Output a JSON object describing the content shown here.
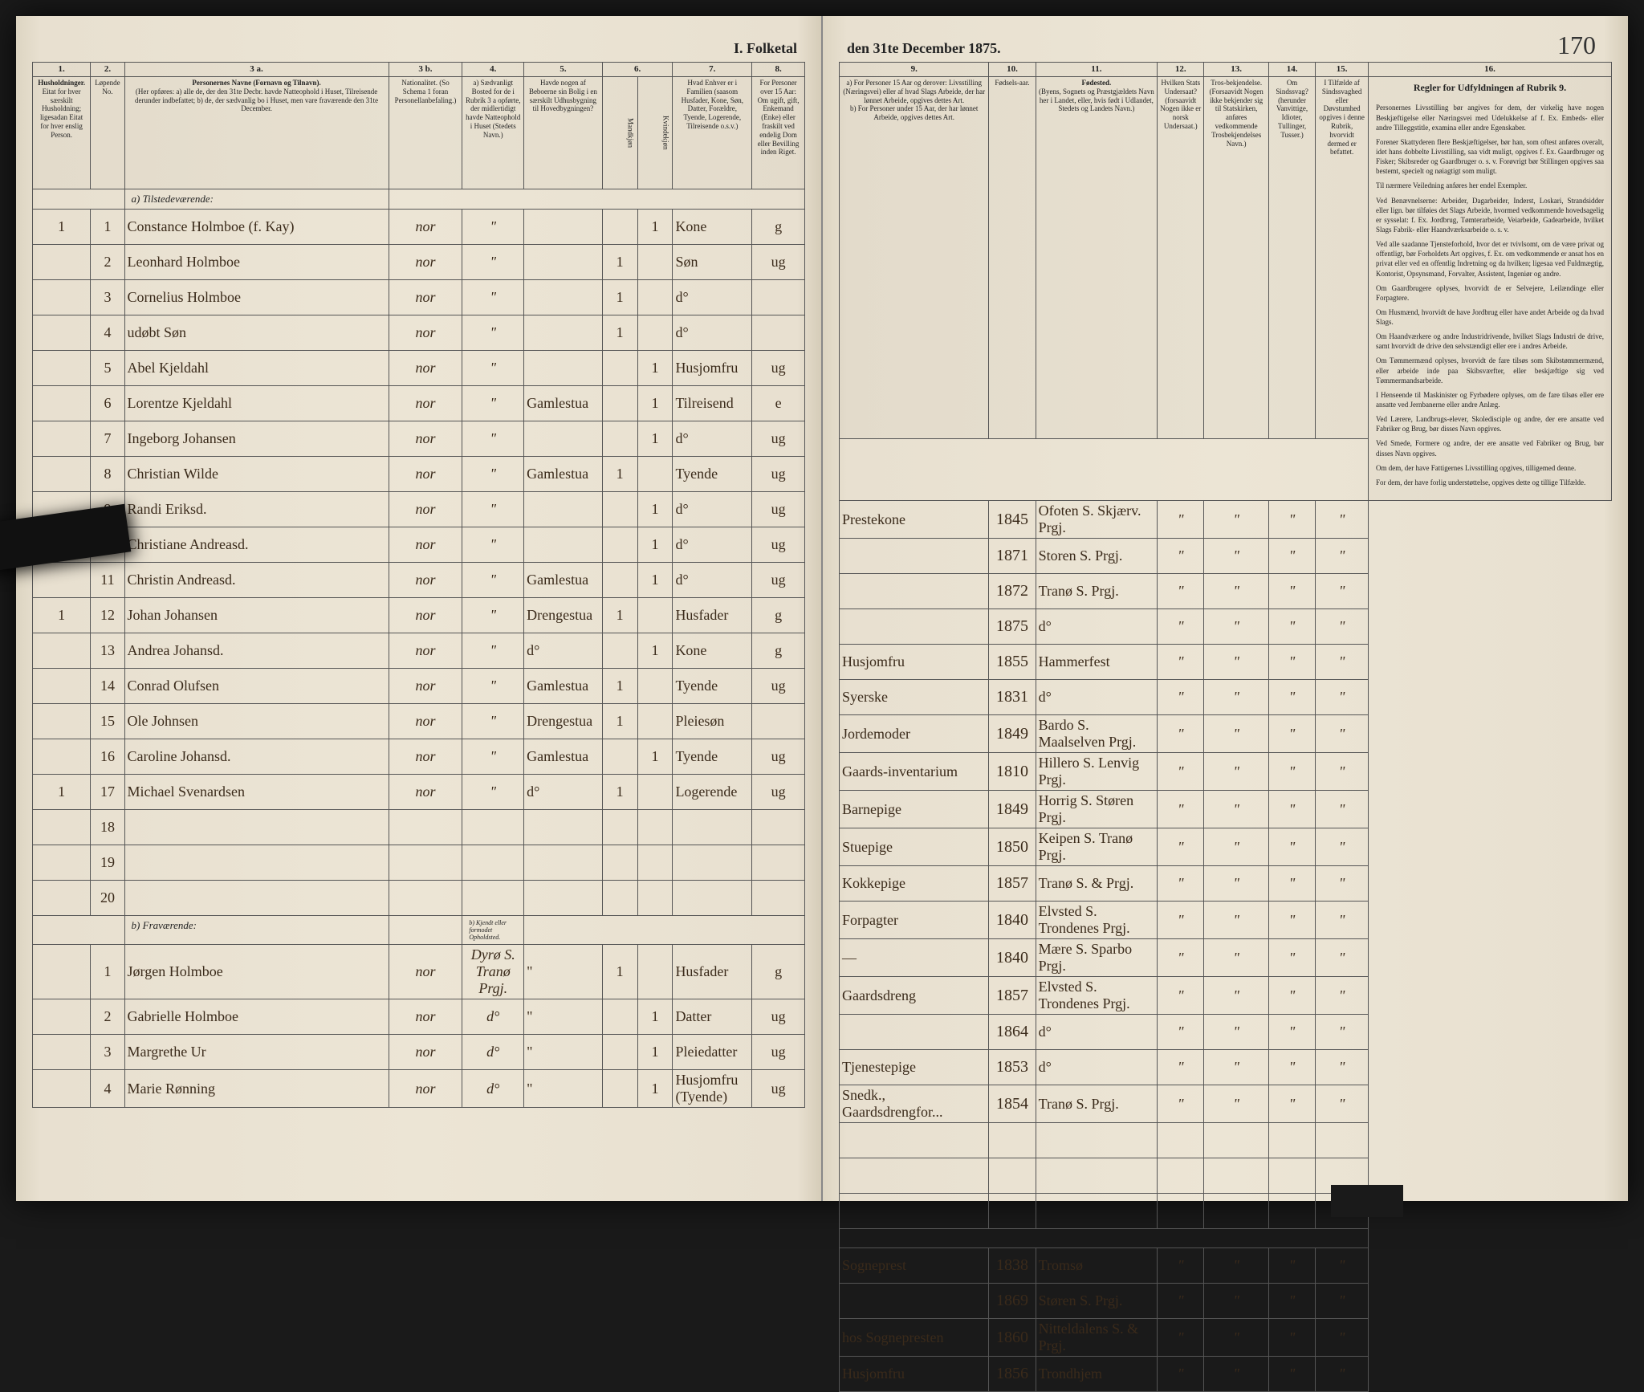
{
  "document": {
    "title_left": "I. Folketal",
    "title_right": "den 31te December 1875.",
    "page_number": "170"
  },
  "columns_left": {
    "c1": "1.",
    "c2": "2.",
    "c3a": "3 a.",
    "c3b": "3 b.",
    "c4": "4.",
    "c5": "5.",
    "c6": "6.",
    "c7": "7.",
    "c8": "8.",
    "h1": "Husholdninger.",
    "h1_sub": "Eitat for hver særskilt Husholdning; ligesadan Eitat for hver enslig Person.",
    "h2": "Løpende No.",
    "h3a_title": "Personernes Navne (Fornavn og Tilnavn).",
    "h3a_sub": "(Her opføres: a) alle de, der den 31te Decbr. havde Natteophold i Huset, Tilreisende derunder indbefattet; b) de, der sædvanlig bo i Huset, men vare fraværende den 31te December.",
    "h3b": "Nationalitet. (So Schema 1 foran Personellanbefaling.)",
    "h4": "a) Sædvanligt Bosted for de i Rubrik 3 a opførte, der midlertidigt havde Natteophold i Huset (Stedets Navn.)",
    "h5": "Havde nogen af Beboerne sin Bolig i en særskilt Udhusbygning til Hovedbygningen?",
    "h6": "Kjøn.",
    "h6m": "Mandkjøn",
    "h6k": "Kvindekjøn",
    "h7": "Hvad Enhver er i Familien (saasom Husfader, Kone, Søn, Datter, Forældre, Tyende, Logerende, Tilreisende o.s.v.)",
    "h8": "For Personer over 15 Aar: Om ugift, gift, Enkemand (Enke) eller fraskilt ved endelig Dom eller Bevilling inden Riget."
  },
  "columns_right": {
    "c9": "9.",
    "c10": "10.",
    "c11": "11.",
    "c12": "12.",
    "c13": "13.",
    "c14": "14.",
    "c15": "15.",
    "c16": "16.",
    "h9": "a) For Personer 15 Aar og derover: Livsstilling (Næringsvei) eller af hvad Slags Arbeide, der har lønnet Arbeide, opgives dettes Art.",
    "h9b": "b) For Personer under 15 Aar, der har lønnet Arbeide, opgives dettes Art.",
    "h10": "Fødsels-aar.",
    "h11_title": "Fødested.",
    "h11_sub": "(Byens, Sognets og Præstgjældets Navn her i Landet, eller, hvis født i Udlandet, Stedets og Landets Navn.)",
    "h12": "Hvilken Stats Undersaat? (forsaavidt Nogen ikke er norsk Undersaat.)",
    "h13": "Tros-bekjendelse. (Forsaavidt Nogen ikke bekjender sig til Statskirken, anføres vedkommende Trosbekjendelses Navn.)",
    "h14": "Om Sindssvag? (herunder Vanvittige, Idioter, Tullinger, Tusser.)",
    "h15": "I Tilfælde af Sindssvaghed eller Døvstumhed opgives i denne Rubrik, hvorvidt dermed er befattet.",
    "h16_title": "Regler for Udfyldningen af Rubrik 9."
  },
  "sections": {
    "a_label": "a) Tilstedeværende:",
    "b_label": "b) Fraværende:",
    "b_col_label": "b) Kjendt eller formodet Opholdsted."
  },
  "rows_a": [
    {
      "hh": "1",
      "n": "1",
      "name": "Constance Holmboe (f. Kay)",
      "nat": "nor",
      "res": "\"",
      "out": "",
      "m": "",
      "k": "1",
      "rel": "Kone",
      "civ": "g",
      "occ": "Prestekone",
      "year": "1845",
      "place": "Ofoten S. Skjærv. Prgj."
    },
    {
      "hh": "",
      "n": "2",
      "name": "Leonhard Holmboe",
      "nat": "nor",
      "res": "\"",
      "out": "",
      "m": "1",
      "k": "",
      "rel": "Søn",
      "civ": "ug",
      "occ": "",
      "year": "1871",
      "place": "Storen S. Prgj."
    },
    {
      "hh": "",
      "n": "3",
      "name": "Cornelius Holmboe",
      "nat": "nor",
      "res": "\"",
      "out": "",
      "m": "1",
      "k": "",
      "rel": "d°",
      "civ": "",
      "occ": "",
      "year": "1872",
      "place": "Tranø S. Prgj."
    },
    {
      "hh": "",
      "n": "4",
      "name": "udøbt Søn",
      "nat": "nor",
      "res": "\"",
      "out": "",
      "m": "1",
      "k": "",
      "rel": "d°",
      "civ": "",
      "occ": "",
      "year": "1875",
      "place": "d°"
    },
    {
      "hh": "",
      "n": "5",
      "name": "Abel Kjeldahl",
      "nat": "nor",
      "res": "\"",
      "out": "",
      "m": "",
      "k": "1",
      "rel": "Husjomfru",
      "civ": "ug",
      "occ": "Husjomfru",
      "year": "1855",
      "place": "Hammerfest"
    },
    {
      "hh": "",
      "n": "6",
      "name": "Lorentze Kjeldahl",
      "nat": "nor",
      "res": "\"",
      "out": "Gamlestua",
      "m": "",
      "k": "1",
      "rel": "Tilreisend",
      "civ": "e",
      "occ": "Syerske",
      "year": "1831",
      "place": "d°"
    },
    {
      "hh": "",
      "n": "7",
      "name": "Ingeborg Johansen",
      "nat": "nor",
      "res": "\"",
      "out": "",
      "m": "",
      "k": "1",
      "rel": "d°",
      "civ": "ug",
      "occ": "Jordemoder",
      "year": "1849",
      "place": "Bardo S. Maalselven Prgj."
    },
    {
      "hh": "",
      "n": "8",
      "name": "Christian Wilde",
      "nat": "nor",
      "res": "\"",
      "out": "Gamlestua",
      "m": "1",
      "k": "",
      "rel": "Tyende",
      "civ": "ug",
      "occ": "Gaards-inventarium",
      "year": "1810",
      "place": "Hillero S. Lenvig Prgj."
    },
    {
      "hh": "",
      "n": "9",
      "name": "Randi Eriksd.",
      "nat": "nor",
      "res": "\"",
      "out": "",
      "m": "",
      "k": "1",
      "rel": "d°",
      "civ": "ug",
      "occ": "Barnepige",
      "year": "1849",
      "place": "Horrig S. Støren Prgj."
    },
    {
      "hh": "",
      "n": "10",
      "name": "Christiane Andreasd.",
      "nat": "nor",
      "res": "\"",
      "out": "",
      "m": "",
      "k": "1",
      "rel": "d°",
      "civ": "ug",
      "occ": "Stuepige",
      "year": "1850",
      "place": "Keipen S. Tranø Prgj."
    },
    {
      "hh": "",
      "n": "11",
      "name": "Christin Andreasd.",
      "nat": "nor",
      "res": "\"",
      "out": "Gamlestua",
      "m": "",
      "k": "1",
      "rel": "d°",
      "civ": "ug",
      "occ": "Kokkepige",
      "year": "1857",
      "place": "Tranø S. & Prgj."
    },
    {
      "hh": "1",
      "n": "12",
      "name": "Johan Johansen",
      "nat": "nor",
      "res": "\"",
      "out": "Drengestua",
      "m": "1",
      "k": "",
      "rel": "Husfader",
      "civ": "g",
      "occ": "Forpagter",
      "year": "1840",
      "place": "Elvsted S. Trondenes Prgj."
    },
    {
      "hh": "",
      "n": "13",
      "name": "Andrea Johansd.",
      "nat": "nor",
      "res": "\"",
      "out": "d°",
      "m": "",
      "k": "1",
      "rel": "Kone",
      "civ": "g",
      "occ": "—",
      "year": "1840",
      "place": "Mære S. Sparbo Prgj."
    },
    {
      "hh": "",
      "n": "14",
      "name": "Conrad Olufsen",
      "nat": "nor",
      "res": "\"",
      "out": "Gamlestua",
      "m": "1",
      "k": "",
      "rel": "Tyende",
      "civ": "ug",
      "occ": "Gaardsdreng",
      "year": "1857",
      "place": "Elvsted S. Trondenes Prgj."
    },
    {
      "hh": "",
      "n": "15",
      "name": "Ole Johnsen",
      "nat": "nor",
      "res": "\"",
      "out": "Drengestua",
      "m": "1",
      "k": "",
      "rel": "Pleiesøn",
      "civ": "",
      "occ": "",
      "year": "1864",
      "place": "d°"
    },
    {
      "hh": "",
      "n": "16",
      "name": "Caroline Johansd.",
      "nat": "nor",
      "res": "\"",
      "out": "Gamlestua",
      "m": "",
      "k": "1",
      "rel": "Tyende",
      "civ": "ug",
      "occ": "Tjenestepige",
      "year": "1853",
      "place": "d°"
    },
    {
      "hh": "1",
      "n": "17",
      "name": "Michael Svenardsen",
      "nat": "nor",
      "res": "\"",
      "out": "d°",
      "m": "1",
      "k": "",
      "rel": "Logerende",
      "civ": "ug",
      "occ": "Snedk., Gaardsdrengfor...",
      "year": "1854",
      "place": "Tranø S. Prgj."
    }
  ],
  "rows_empty": [
    "18",
    "19",
    "20"
  ],
  "rows_b": [
    {
      "hh": "",
      "n": "1",
      "name": "Jørgen Holmboe",
      "nat": "nor",
      "res": "Dyrø S. Tranø Prgj.",
      "out": "\"",
      "m": "1",
      "k": "",
      "rel": "Husfader",
      "civ": "g",
      "occ": "Sogneprest",
      "year": "1838",
      "place": "Tromsø"
    },
    {
      "hh": "",
      "n": "2",
      "name": "Gabrielle Holmboe",
      "nat": "nor",
      "res": "d°",
      "out": "\"",
      "m": "",
      "k": "1",
      "rel": "Datter",
      "civ": "ug",
      "occ": "",
      "year": "1869",
      "place": "Støren S. Prgj."
    },
    {
      "hh": "",
      "n": "3",
      "name": "Margrethe Ur",
      "nat": "nor",
      "res": "d°",
      "out": "\"",
      "m": "",
      "k": "1",
      "rel": "Pleiedatter",
      "civ": "ug",
      "occ": "hos Sognepresten",
      "year": "1860",
      "place": "Nitteldalens S. & Prgj."
    },
    {
      "hh": "",
      "n": "4",
      "name": "Marie Rønning",
      "nat": "nor",
      "res": "d°",
      "out": "\"",
      "m": "",
      "k": "1",
      "rel": "Husjomfru (Tyende)",
      "civ": "ug",
      "occ": "Husjomfru",
      "year": "1856",
      "place": "Trondhjem"
    }
  ],
  "instructions": {
    "p1": "Personernes Livsstilling bør angives for dem, der virkelig have nogen Beskjæftigelse eller Næringsvei med Udelukkelse af f. Ex. Embeds- eller andre Tilleggstitle, examina eller andre Egenskaber.",
    "p2": "Forener Skattyderen flere Beskjæftigelser, bør han, som oftest anføres overalt, idet hans dobbelte Livsstilling, saa vidt muligt, opgives f. Ex. Gaardbruger og Fisker; Skibsreder og Gaardbruger o. s. v. Forøvrigt bør Stillingen opgives saa bestemt, specielt og nøiagtigt som muligt.",
    "p3": "Til nærmere Veiledning anføres her endel Exempler.",
    "p4": "Ved Benævnelserne: Arbeider, Dagarbeider, Inderst, Loskari, Strandsidder eller lign. bør tilføies det Slags Arbeide, hvormed vedkommende hovedsagelig er sysselat: f. Ex. Jordbrug, Tømterarbeide, Veiarbeide, Gadearbeide, hvilket Slags Fabrik- eller Haandværksarbeide o. s. v.",
    "p5": "Ved alle saadanne Tjensteforhold, hvor det er tvivlsomt, om de være privat og offentligt, bør Forholdets Art opgives, f. Ex. om vedkommende er ansat hos en privat eller ved en offentlig Indretning og da hvilken; ligesaa ved Fuldmægtig, Kontorist, Opsynsmand, Forvalter, Assistent, Ingeniør og andre.",
    "p6": "Om Gaardbrugere oplyses, hvorvidt de er Selvejere, Leilændinge eller Forpagtere.",
    "p7": "Om Husmænd, hvorvidt de have Jordbrug eller have andet Arbeide og da hvad Slags.",
    "p8": "Om Haandværkere og andre Industridrivende, hvilket Slags Industri de drive, samt hvorvidt de drive den selvstændigt eller ere i andres Arbeide.",
    "p9": "Om Tømmermænd oplyses, hvorvidt de fare tilsøs som Skibstømmermænd, eller arbeide inde paa Skibsværfter, eller beskjæftige sig ved Tømmermandsarbeide.",
    "p10": "I Henseende til Maskinister og Fyrbødere oplyses, om de fare tilsøs eller ere ansatte ved Jernbanerne eller andre Anlæg.",
    "p11": "Ved Lærere, Landbrugs-elever, Skoledisciple og andre, der ere ansatte ved Fabriker og Brug, bør disses Navn opgives.",
    "p12": "Ved Smede, Formere og andre, der ere ansatte ved Fabriker og Brug, bør disses Navn opgives.",
    "p13": "Om dem, der have Fattigernes Livsstilling opgives, tilligemed denne.",
    "p14": "For dem, der have forlig understøttelse, opgives dette og tillige Tilfælde."
  }
}
